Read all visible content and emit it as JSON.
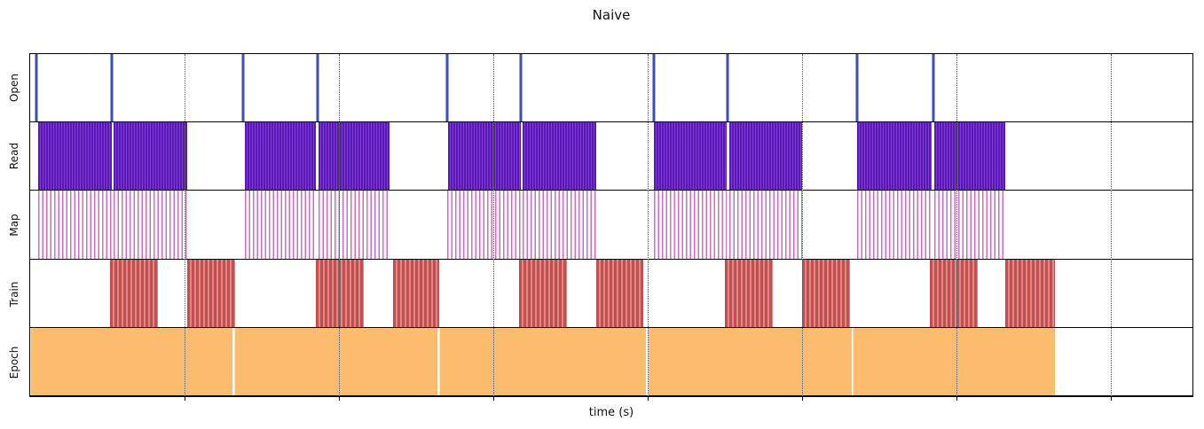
{
  "chart_data": {
    "type": "timeline",
    "title": "Naive",
    "xlabel": "time (s)",
    "xlim": [
      0,
      75.3
    ],
    "x_gridlines": [
      10,
      20,
      30,
      40,
      50,
      60,
      70
    ],
    "grid": "dotted-vertical",
    "legend": "none",
    "rows": [
      {
        "label": "Open",
        "kind": "spike",
        "color": "#3c4db4",
        "events": [
          0.4,
          5.3,
          13.8,
          18.6,
          27.0,
          31.8,
          40.4,
          45.2,
          53.6,
          58.5
        ]
      },
      {
        "label": "Read",
        "kind": "striped-dense",
        "color": "#5b18b0",
        "color2": "#7d3be0",
        "spans": [
          [
            0.5,
            5.3
          ],
          [
            5.4,
            10.2
          ],
          [
            13.9,
            18.5
          ],
          [
            18.7,
            23.3
          ],
          [
            27.1,
            31.8
          ],
          [
            31.9,
            36.7
          ],
          [
            40.4,
            45.1
          ],
          [
            45.3,
            50.0
          ],
          [
            53.6,
            58.4
          ],
          [
            58.6,
            63.2
          ]
        ]
      },
      {
        "label": "Map",
        "kind": "striped-sparse",
        "color": "#cf6ac5",
        "color2": "#ffffff",
        "spans": [
          [
            0.5,
            5.3
          ],
          [
            5.4,
            10.2
          ],
          [
            13.9,
            18.5
          ],
          [
            18.7,
            23.3
          ],
          [
            27.0,
            31.8
          ],
          [
            31.9,
            36.7
          ],
          [
            40.4,
            45.1
          ],
          [
            45.3,
            50.0
          ],
          [
            53.6,
            58.4
          ],
          [
            58.6,
            63.2
          ]
        ]
      },
      {
        "label": "Train",
        "kind": "striped-medium",
        "color": "#c24f4e",
        "color2": "#e08886",
        "spans": [
          [
            5.2,
            8.3
          ],
          [
            10.2,
            13.3
          ],
          [
            18.5,
            21.6
          ],
          [
            23.5,
            26.5
          ],
          [
            31.7,
            34.8
          ],
          [
            36.7,
            39.7
          ],
          [
            45.0,
            48.1
          ],
          [
            50.0,
            53.1
          ],
          [
            58.3,
            61.4
          ],
          [
            63.2,
            66.4
          ]
        ]
      },
      {
        "label": "Epoch",
        "kind": "solid",
        "color": "#fbbd6d",
        "color2": "#ffe3bd",
        "spans": [
          [
            0.0,
            13.1
          ],
          [
            13.2,
            26.4
          ],
          [
            26.5,
            39.9
          ],
          [
            40.0,
            53.2
          ],
          [
            53.3,
            66.4
          ]
        ]
      }
    ]
  }
}
